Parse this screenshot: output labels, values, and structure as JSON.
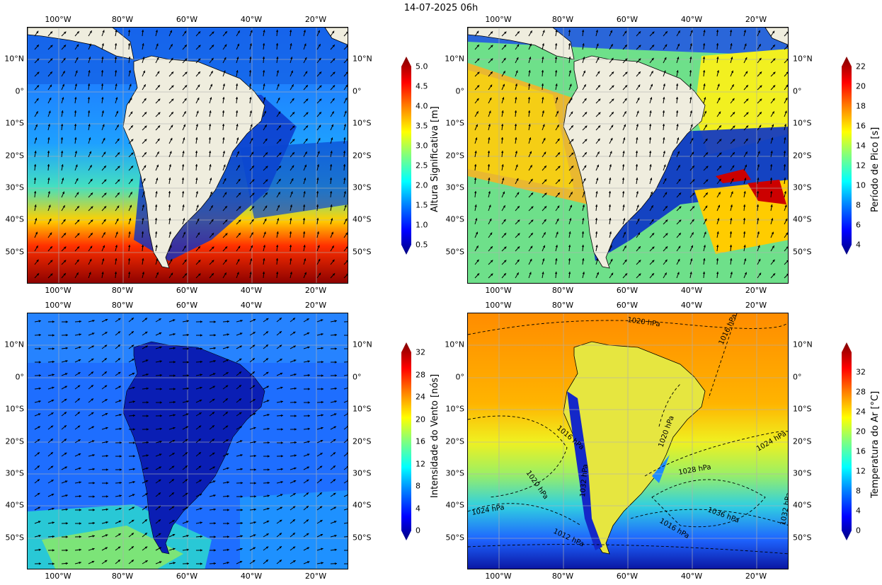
{
  "title": "14-07-2025 06h",
  "lon_labels": [
    "100°W",
    "80°W",
    "60°W",
    "40°W",
    "20°W"
  ],
  "lat_labels": [
    "10°N",
    "0°",
    "10°S",
    "20°S",
    "30°S",
    "40°S",
    "50°S"
  ],
  "panels": [
    {
      "id": "hs",
      "colorbar_label": "Altura Significativa [m]",
      "colorbar_ticks": [
        "5.0",
        "4.5",
        "4.0",
        "3.5",
        "3.0",
        "2.5",
        "2.0",
        "1.5",
        "1.0",
        "0.5"
      ],
      "vmin": 0.5,
      "vmax": 5.0,
      "arrows": "wave direction"
    },
    {
      "id": "tp",
      "colorbar_label": "Período de Pico [s]",
      "colorbar_ticks": [
        "22",
        "20",
        "18",
        "16",
        "14",
        "12",
        "10",
        "8",
        "6",
        "4"
      ],
      "vmin": 4,
      "vmax": 22,
      "arrows": "wave direction"
    },
    {
      "id": "wind",
      "colorbar_label": "Intensidade do Vento [nós]",
      "colorbar_ticks": [
        "32",
        "28",
        "24",
        "20",
        "16",
        "12",
        "8",
        "4",
        "0"
      ],
      "vmin": 0,
      "vmax": 32,
      "arrows": "wind"
    },
    {
      "id": "temp",
      "colorbar_label": "Temperatura do Ar [°C]",
      "colorbar_ticks": [
        "32",
        "28",
        "24",
        "20",
        "16",
        "12",
        "8",
        "4",
        "0"
      ],
      "vmin": 0,
      "vmax": 36,
      "isobar_labels": [
        "1020 hPa",
        "1016 hPa",
        "1016 hPa",
        "1020 hPa",
        "1024 hPa",
        "1028 hPa",
        "1020 hPa",
        "1036 hPa",
        "1016 hPa",
        "1024 hPa",
        "1032 hPa",
        "1012 hPa",
        "1032 hPa"
      ]
    }
  ],
  "colors": {
    "land": "#efedde",
    "colormap": [
      "#00007f",
      "#0000ff",
      "#007fff",
      "#00ffff",
      "#7fff7f",
      "#ffff00",
      "#ff7f00",
      "#ff0000",
      "#7f0000"
    ]
  }
}
